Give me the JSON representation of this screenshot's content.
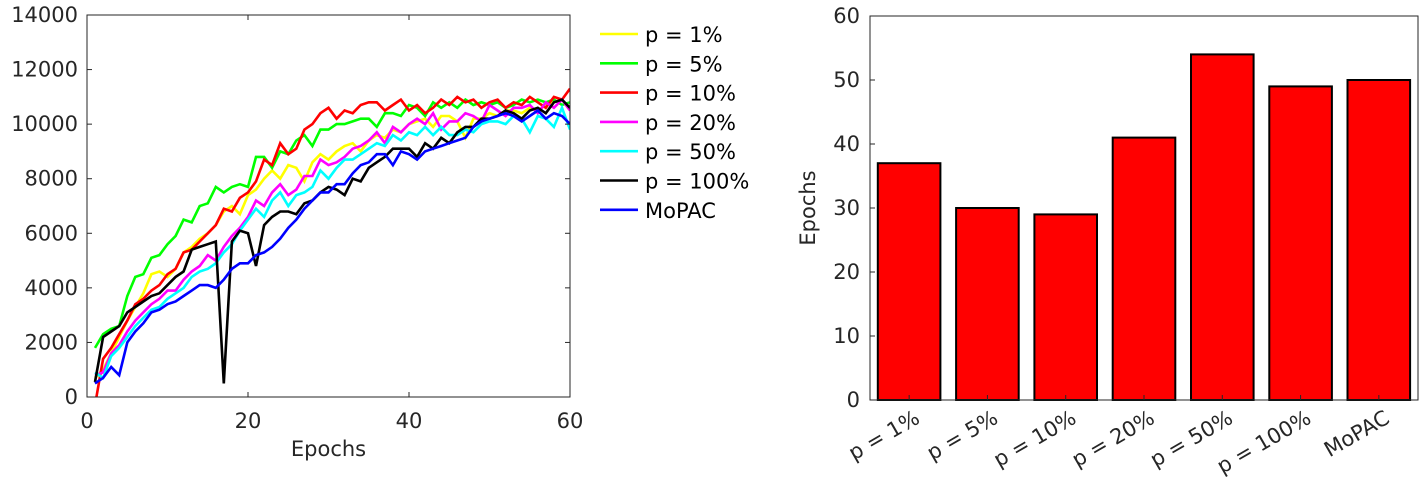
{
  "chart_data": [
    {
      "type": "line",
      "xlabel": "Epochs",
      "ylabel": "",
      "xlim": [
        0,
        60
      ],
      "ylim": [
        0,
        14000
      ],
      "xticks": [
        "0",
        "20",
        "40",
        "60"
      ],
      "yticks": [
        "0",
        "2000",
        "4000",
        "6000",
        "8000",
        "10000",
        "12000",
        "14000"
      ],
      "grid": false,
      "legend_position": "outside-right",
      "series": [
        {
          "name": "p = 1%",
          "color": "#ffff00",
          "x": [
            1,
            2,
            3,
            4,
            5,
            6,
            7,
            8,
            9,
            10,
            11,
            12,
            13,
            14,
            15,
            16,
            17,
            18,
            19,
            20,
            21,
            22,
            23,
            24,
            25,
            26,
            27,
            28,
            29,
            30,
            31,
            32,
            33,
            34,
            35,
            36,
            37,
            38,
            39,
            40,
            41,
            42,
            43,
            44,
            45,
            46,
            47,
            48,
            49,
            50,
            51,
            52,
            53,
            54,
            55,
            56,
            57,
            58,
            59,
            60
          ],
          "y": [
            700,
            1000,
            1600,
            2200,
            2800,
            3300,
            3800,
            4500,
            4600,
            4400,
            4700,
            5300,
            5500,
            5800,
            6000,
            6300,
            6800,
            7000,
            6700,
            7400,
            7600,
            8000,
            8300,
            8000,
            8500,
            8400,
            7900,
            8600,
            8900,
            8700,
            9000,
            9200,
            9300,
            9000,
            9400,
            9600,
            9500,
            9800,
            9700,
            10000,
            10100,
            10200,
            9900,
            10300,
            10300,
            10100,
            9500,
            10200,
            10200,
            10400,
            10300,
            10500,
            10500,
            10400,
            10600,
            10500,
            10700,
            10800,
            10900,
            10500
          ]
        },
        {
          "name": "p = 5%",
          "color": "#00ff00",
          "x": [
            1,
            2,
            3,
            4,
            5,
            6,
            7,
            8,
            9,
            10,
            11,
            12,
            13,
            14,
            15,
            16,
            17,
            18,
            19,
            20,
            21,
            22,
            23,
            24,
            25,
            26,
            27,
            28,
            29,
            30,
            31,
            32,
            33,
            34,
            35,
            36,
            37,
            38,
            39,
            40,
            41,
            42,
            43,
            44,
            45,
            46,
            47,
            48,
            49,
            50,
            51,
            52,
            53,
            54,
            55,
            56,
            57,
            58,
            59,
            60
          ],
          "y": [
            1800,
            2300,
            2500,
            2600,
            3700,
            4400,
            4500,
            5100,
            5200,
            5600,
            5900,
            6500,
            6400,
            7000,
            7100,
            7700,
            7500,
            7700,
            7800,
            7700,
            8800,
            8800,
            8400,
            9000,
            8900,
            9400,
            9600,
            9200,
            9800,
            9800,
            10000,
            10000,
            10100,
            10200,
            10200,
            9900,
            10400,
            10400,
            10300,
            10700,
            10600,
            10300,
            10800,
            10600,
            10800,
            10600,
            10900,
            10700,
            10800,
            10700,
            10800,
            10600,
            10700,
            10900,
            10800,
            10900,
            10800,
            10900,
            10700,
            10800
          ]
        },
        {
          "name": "p = 10%",
          "color": "#ff0000",
          "x": [
            1,
            2,
            3,
            4,
            5,
            6,
            7,
            8,
            9,
            10,
            11,
            12,
            13,
            14,
            15,
            16,
            17,
            18,
            19,
            20,
            21,
            22,
            23,
            24,
            25,
            26,
            27,
            28,
            29,
            30,
            31,
            32,
            33,
            34,
            35,
            36,
            37,
            38,
            39,
            40,
            41,
            42,
            43,
            44,
            45,
            46,
            47,
            48,
            49,
            50,
            51,
            52,
            53,
            54,
            55,
            56,
            57,
            58,
            59,
            60
          ],
          "y": [
            -300,
            1400,
            1800,
            2300,
            2800,
            3400,
            3600,
            3900,
            4100,
            4500,
            4700,
            5300,
            5400,
            5700,
            6000,
            6300,
            6900,
            6800,
            7300,
            7500,
            7900,
            8700,
            8500,
            9300,
            8900,
            9100,
            9800,
            10000,
            10400,
            10600,
            10200,
            10500,
            10400,
            10700,
            10800,
            10800,
            10500,
            10700,
            10900,
            10500,
            10700,
            10400,
            10600,
            10900,
            10700,
            11000,
            10800,
            10900,
            10600,
            10800,
            10900,
            10600,
            10800,
            10700,
            11000,
            10800,
            10600,
            11000,
            10900,
            11300
          ]
        },
        {
          "name": "p = 20%",
          "color": "#ff00ff",
          "x": [
            1,
            2,
            3,
            4,
            5,
            6,
            7,
            8,
            9,
            10,
            11,
            12,
            13,
            14,
            15,
            16,
            17,
            18,
            19,
            20,
            21,
            22,
            23,
            24,
            25,
            26,
            27,
            28,
            29,
            30,
            31,
            32,
            33,
            34,
            35,
            36,
            37,
            38,
            39,
            40,
            41,
            42,
            43,
            44,
            45,
            46,
            47,
            48,
            49,
            50,
            51,
            52,
            53,
            54,
            55,
            56,
            57,
            58,
            59,
            60
          ],
          "y": [
            800,
            900,
            1600,
            1900,
            2400,
            2800,
            3100,
            3400,
            3600,
            3900,
            3900,
            4300,
            4600,
            4800,
            5200,
            5000,
            5500,
            5900,
            6200,
            6600,
            7200,
            7000,
            7500,
            7800,
            7400,
            7600,
            8100,
            8100,
            8700,
            8500,
            8600,
            8800,
            9100,
            9200,
            9400,
            9700,
            9300,
            9900,
            9700,
            10000,
            10200,
            10000,
            10400,
            9800,
            10100,
            10100,
            10400,
            10300,
            10100,
            10700,
            10500,
            10300,
            10600,
            10600,
            10700,
            10400,
            10800,
            10600,
            10900,
            10500
          ]
        },
        {
          "name": "p = 50%",
          "color": "#00ffff",
          "x": [
            1,
            2,
            3,
            4,
            5,
            6,
            7,
            8,
            9,
            10,
            11,
            12,
            13,
            14,
            15,
            16,
            17,
            18,
            19,
            20,
            21,
            22,
            23,
            24,
            25,
            26,
            27,
            28,
            29,
            30,
            31,
            32,
            33,
            34,
            35,
            36,
            37,
            38,
            39,
            40,
            41,
            42,
            43,
            44,
            45,
            46,
            47,
            48,
            49,
            50,
            51,
            52,
            53,
            54,
            55,
            56,
            57,
            58,
            59,
            60
          ],
          "y": [
            900,
            700,
            1500,
            1800,
            2200,
            2600,
            2900,
            3200,
            3300,
            3600,
            3800,
            4000,
            4400,
            4600,
            4700,
            4900,
            5300,
            5600,
            6100,
            6500,
            6900,
            6600,
            7200,
            7500,
            7000,
            7400,
            7500,
            7700,
            8300,
            8000,
            8400,
            8700,
            8700,
            8900,
            9100,
            9300,
            9200,
            9600,
            9400,
            9700,
            9600,
            9900,
            9600,
            9900,
            9600,
            9600,
            9800,
            9700,
            10000,
            10100,
            10100,
            10000,
            10300,
            10200,
            9700,
            10300,
            10200,
            9900,
            10600,
            9800
          ]
        },
        {
          "name": "p = 100%",
          "color": "#000000",
          "x": [
            1,
            2,
            3,
            4,
            5,
            6,
            7,
            8,
            9,
            10,
            11,
            12,
            13,
            14,
            15,
            16,
            17,
            18,
            19,
            20,
            21,
            22,
            23,
            24,
            25,
            26,
            27,
            28,
            29,
            30,
            31,
            32,
            33,
            34,
            35,
            36,
            37,
            38,
            39,
            40,
            41,
            42,
            43,
            44,
            45,
            46,
            47,
            48,
            49,
            50,
            51,
            52,
            53,
            54,
            55,
            56,
            57,
            58,
            59,
            60
          ],
          "y": [
            550,
            2200,
            2400,
            2600,
            3100,
            3300,
            3500,
            3700,
            3800,
            4100,
            4400,
            4600,
            5400,
            5500,
            5600,
            5700,
            500,
            5700,
            6100,
            6000,
            4800,
            6300,
            6600,
            6800,
            6800,
            6700,
            7100,
            7200,
            7500,
            7700,
            7600,
            7400,
            8000,
            7900,
            8400,
            8600,
            8800,
            9100,
            9100,
            9100,
            8800,
            9300,
            9100,
            9500,
            9300,
            9700,
            9900,
            9900,
            10200,
            10200,
            10300,
            10500,
            10400,
            10200,
            10500,
            10600,
            10400,
            10800,
            10900,
            10600
          ]
        },
        {
          "name": "MoPAC",
          "color": "#0000ff",
          "x": [
            1,
            2,
            3,
            4,
            5,
            6,
            7,
            8,
            9,
            10,
            11,
            12,
            13,
            14,
            15,
            16,
            17,
            18,
            19,
            20,
            21,
            22,
            23,
            24,
            25,
            26,
            27,
            28,
            29,
            30,
            31,
            32,
            33,
            34,
            35,
            36,
            37,
            38,
            39,
            40,
            41,
            42,
            43,
            44,
            45,
            46,
            47,
            48,
            49,
            50,
            51,
            52,
            53,
            54,
            55,
            56,
            57,
            58,
            59,
            60
          ],
          "y": [
            500,
            700,
            1100,
            800,
            2000,
            2400,
            2700,
            3100,
            3200,
            3400,
            3500,
            3700,
            3900,
            4100,
            4100,
            4000,
            4300,
            4700,
            4900,
            4900,
            5200,
            5300,
            5500,
            5800,
            6200,
            6500,
            6900,
            7200,
            7500,
            7500,
            7800,
            7800,
            8200,
            8500,
            8600,
            8900,
            8900,
            8500,
            9000,
            8900,
            8700,
            9000,
            9100,
            9200,
            9300,
            9400,
            9500,
            9900,
            10100,
            10200,
            10300,
            10400,
            10300,
            10100,
            10300,
            10500,
            10200,
            10400,
            10300,
            10000
          ]
        }
      ]
    },
    {
      "type": "bar",
      "xlabel": "",
      "ylabel": "Epochs",
      "ylim": [
        0,
        60
      ],
      "yticks": [
        "0",
        "10",
        "20",
        "30",
        "40",
        "50",
        "60"
      ],
      "categories": [
        "p = 1%",
        "p = 5%",
        "p = 10%",
        "p = 20%",
        "p = 50%",
        "p = 100%",
        "MoPAC"
      ],
      "values": [
        37,
        30,
        29,
        41,
        54,
        49,
        50
      ],
      "bar_color": "#ff0000",
      "edge_color": "#000000",
      "grid": false
    }
  ]
}
